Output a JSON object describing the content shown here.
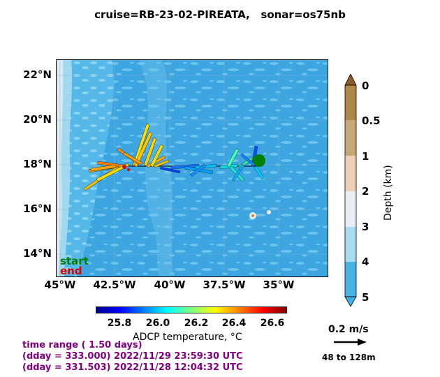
{
  "title": "cruise=RB-23-02-PIREATA,   sonar=os75nb",
  "map": {
    "lat_labels": [
      "22°N",
      "20°N",
      "18°N",
      "16°N",
      "14°N"
    ],
    "lon_labels": [
      "45°W",
      "42.5°W",
      "40°W",
      "37.5°W",
      "35°W"
    ],
    "legend_start": "start",
    "legend_end": "end",
    "start_color": "#008000",
    "end_color": "#e00000"
  },
  "depth_colorbar": {
    "title": "Depth (km)",
    "ticks": [
      "0",
      "0.5",
      "1",
      "2",
      "3",
      "4",
      "5"
    ],
    "colors": [
      "#b08848",
      "#c8a878",
      "#ecd0b8",
      "#e8eef4",
      "#a8dcf0",
      "#48b4e4"
    ]
  },
  "temp_colorbar": {
    "title": "ADCP temperature, °C",
    "ticks": [
      "25.8",
      "26.0",
      "26.2",
      "26.4",
      "26.6"
    ]
  },
  "scale": {
    "speed_label": "0.2 m/s",
    "depth_range": "48 to 128m"
  },
  "time_info": {
    "line1": "time range ( 1.50 days)",
    "line2": "(dday = 333.000) 2022/11/29 23:59:30 UTC",
    "line3": "(dday = 331.503) 2022/11/28 12:04:32 UTC"
  }
}
